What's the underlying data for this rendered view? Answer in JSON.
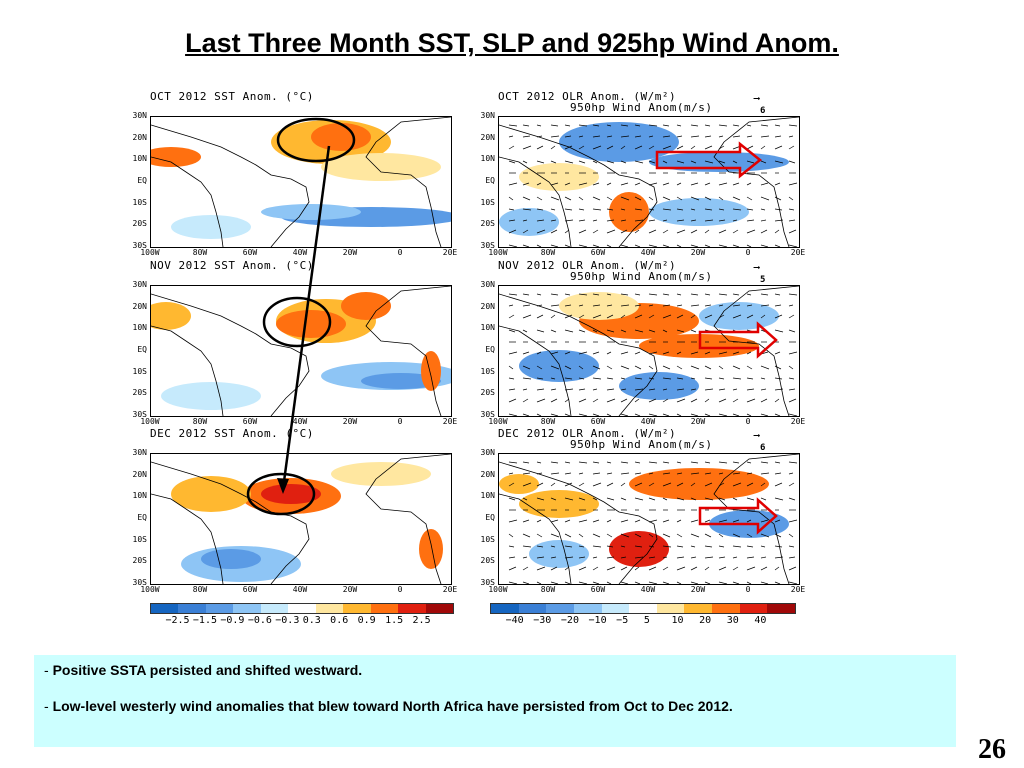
{
  "slide": {
    "title": "Last Three Month SST, SLP and 925hp Wind Anom.",
    "page_number": "26"
  },
  "sst_panels": [
    {
      "title": "OCT 2012 SST Anom. (°C)"
    },
    {
      "title": "NOV 2012 SST Anom. (°C)"
    },
    {
      "title": "DEC 2012 SST Anom. (°C)"
    }
  ],
  "olr_panels": [
    {
      "title": "OCT 2012 OLR Anom. (W/m²)",
      "subtitle": "950hp Wind Anom(m/s)",
      "ref_vector": "6"
    },
    {
      "title": "NOV 2012 OLR Anom. (W/m²)",
      "subtitle": "950hp Wind Anom(m/s)",
      "ref_vector": "5"
    },
    {
      "title": "DEC 2012 OLR Anom. (W/m²)",
      "subtitle": "950hp Wind Anom(m/s)",
      "ref_vector": "6"
    }
  ],
  "axes": {
    "lat_labels": [
      "30N",
      "20N",
      "10N",
      "EQ",
      "10S",
      "20S",
      "30S"
    ],
    "lon_labels": [
      "100W",
      "80W",
      "60W",
      "40W",
      "20W",
      "0",
      "20E"
    ]
  },
  "sst_colorbar": {
    "labels": [
      "−2.5",
      "−1.5",
      "−0.9",
      "−0.6",
      "−0.3",
      "0.3",
      "0.6",
      "0.9",
      "1.5",
      "2.5"
    ],
    "colors": [
      "#1565c0",
      "#3a7fd5",
      "#5b9be5",
      "#8ec5f5",
      "#c6eafc",
      "#ffffff",
      "#ffe7a0",
      "#ffb830",
      "#ff7010",
      "#e02010",
      "#a00808"
    ]
  },
  "olr_colorbar": {
    "labels": [
      "−40",
      "−30",
      "−20",
      "−10",
      "−5",
      "5",
      "10",
      "20",
      "30",
      "40"
    ],
    "colors": [
      "#1565c0",
      "#3a7fd5",
      "#5b9be5",
      "#8ec5f5",
      "#c6eafc",
      "#ffffff",
      "#ffe7a0",
      "#ffb830",
      "#ff7010",
      "#e02010",
      "#a00808"
    ]
  },
  "notes": [
    {
      "dash": "- ",
      "text": "Positive SSTA persisted and shifted westward."
    },
    {
      "dash": "- ",
      "text": "Low-level  westerly wind anomalies that blew toward North Africa have persisted from Oct to Dec 2012."
    }
  ]
}
